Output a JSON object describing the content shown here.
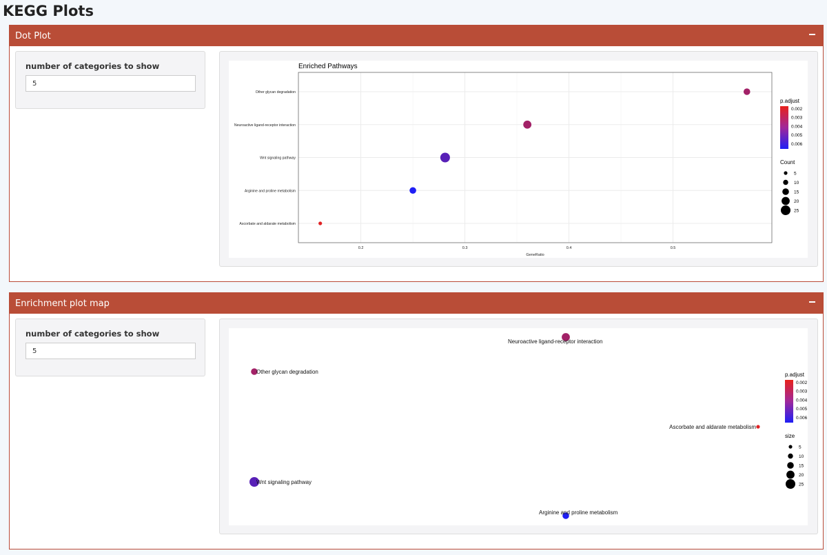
{
  "page": {
    "title": "KEGG Plots"
  },
  "dot_panel": {
    "header": "Dot Plot",
    "collapse_icon": "minus-icon",
    "control_label": "number of categories to show",
    "control_value": "5"
  },
  "map_panel": {
    "header": "Enrichment plot map",
    "collapse_icon": "minus-icon",
    "control_label": "number of categories to show",
    "control_value": "5"
  },
  "colors": {
    "header": "#b94d37",
    "padj_high": "#e8221b",
    "padj_low": "#1f1ff5"
  },
  "chart_data": [
    {
      "type": "scatter",
      "title": "Enriched Pathways",
      "xlabel": "GeneRatio",
      "ylabel": "",
      "xlim": [
        0.14,
        0.595
      ],
      "xticks": [
        0.2,
        0.3,
        0.4,
        0.5
      ],
      "grid": true,
      "categories": [
        "Other glycan degradation",
        "Neuroactive ligand-receptor interaction",
        "Wnt signaling pathway",
        "Arginine and proline metabolism",
        "Ascorbate and aldarate metabolism"
      ],
      "points": [
        {
          "category": "Other glycan degradation",
          "x": 0.571,
          "count": 15,
          "p_adjust": 0.003
        },
        {
          "category": "Neuroactive ligand-receptor interaction",
          "x": 0.36,
          "count": 20,
          "p_adjust": 0.003
        },
        {
          "category": "Wnt signaling pathway",
          "x": 0.281,
          "count": 25,
          "p_adjust": 0.0048
        },
        {
          "category": "Arginine and proline metabolism",
          "x": 0.25,
          "count": 15,
          "p_adjust": 0.0062
        },
        {
          "category": "Ascorbate and aldarate metabolism",
          "x": 0.161,
          "count": 5,
          "p_adjust": 0.0015
        }
      ],
      "color_legend": {
        "title": "p.adjust",
        "labels": [
          "0.002",
          "0.003",
          "0.004",
          "0.005",
          "0.006"
        ]
      },
      "size_legend": {
        "title": "Count",
        "labels": [
          "5",
          "10",
          "15",
          "20",
          "25"
        ]
      },
      "legend_placement": "right"
    },
    {
      "type": "scatter",
      "title": "",
      "nodes": [
        {
          "label": "Neuroactive ligand-receptor interaction",
          "size": 20,
          "p_adjust": 0.003
        },
        {
          "label": "Other glycan degradation",
          "size": 15,
          "p_adjust": 0.003
        },
        {
          "label": "Ascorbate and aldarate metabolism",
          "size": 5,
          "p_adjust": 0.0015
        },
        {
          "label": "Wnt signaling pathway",
          "size": 25,
          "p_adjust": 0.0048
        },
        {
          "label": "Arginine and proline metabolism",
          "size": 15,
          "p_adjust": 0.0062
        }
      ],
      "color_legend": {
        "title": "p.adjust",
        "labels": [
          "0.002",
          "0.003",
          "0.004",
          "0.005",
          "0.006"
        ]
      },
      "size_legend": {
        "title": "size",
        "labels": [
          "5",
          "10",
          "15",
          "20",
          "25"
        ]
      },
      "legend_placement": "right"
    }
  ]
}
